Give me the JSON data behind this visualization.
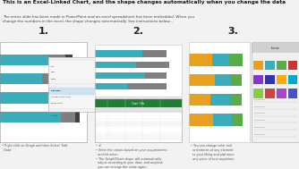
{
  "bg_color": "#f2f2f2",
  "title": "This is an Excel-Linked Chart, and the shape changes automatically when you change the data",
  "subtitle": "The entire slide has been made in PowerPoint and an excel spreadsheet has been embedded. When you\nchange the numbers in the excel, the shape changes automatically. See instructions below...",
  "title_color": "#1a1a1a",
  "subtitle_color": "#444444",
  "steps": [
    "1.",
    "2.",
    "3."
  ],
  "step_color": "#222222",
  "box_bg": "#ffffff",
  "box_border": "#cccccc",
  "teal": "#3aacba",
  "gray": "#7f7f7f",
  "dark": "#404040",
  "orange": "#e8a020",
  "green": "#5aab4a",
  "excel_green": "#1e7e34",
  "bullet_color": "#444444",
  "text_color": "#555555",
  "bar1_teal": [
    0.55,
    0.48,
    0.58,
    0.7
  ],
  "bar1_gray": [
    0.2,
    0.28,
    0.22,
    0.16
  ],
  "bar1_dark": [
    0.08,
    0.06,
    0.05,
    0.05
  ],
  "bar2_teal": [
    0.55,
    0.48,
    0.58,
    0.38
  ],
  "bar2_gray": [
    0.28,
    0.38,
    0.25,
    0.45
  ],
  "bar3_orange": [
    0.38,
    0.42,
    0.35,
    0.4
  ],
  "bar3_teal": [
    0.28,
    0.25,
    0.32,
    0.3
  ],
  "bar3_green": [
    0.22,
    0.2,
    0.2,
    0.18
  ]
}
